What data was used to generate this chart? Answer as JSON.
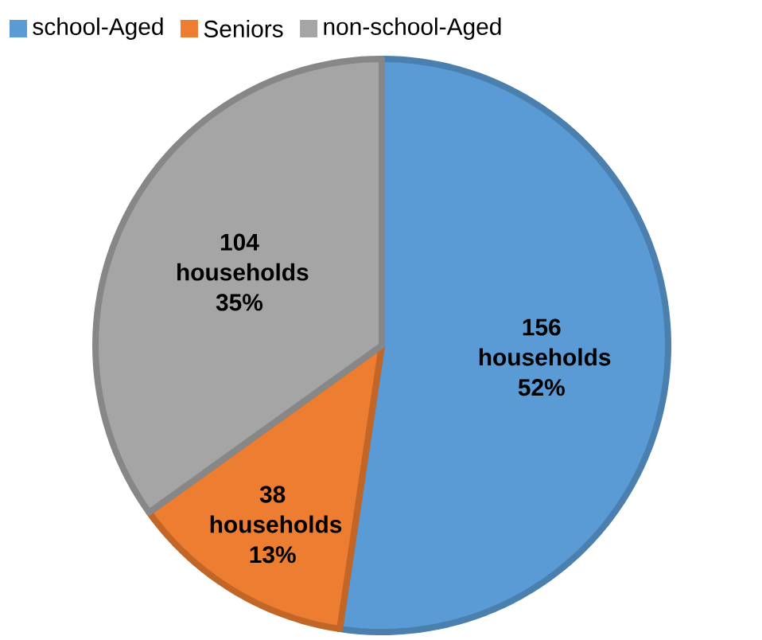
{
  "chart_data": {
    "type": "pie",
    "categories": [
      "school-Aged",
      "Seniors",
      "non-school-Aged"
    ],
    "values": [
      156,
      38,
      104
    ],
    "colors": [
      "#5b9bd5",
      "#ed7d31",
      "#a5a5a5"
    ],
    "value_labels": [
      "156 households 52%",
      "38 households 13%",
      "104 households 35%"
    ],
    "legend": "top"
  }
}
